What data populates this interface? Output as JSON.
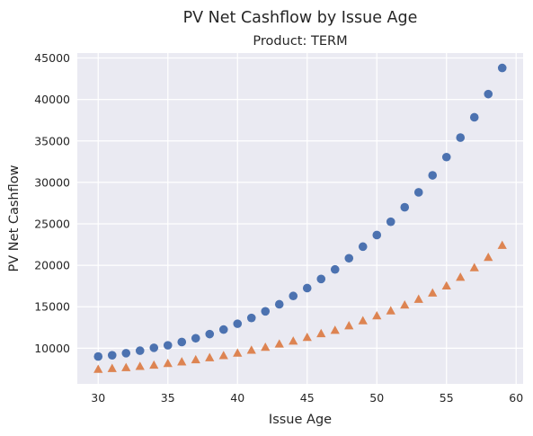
{
  "chart_data": {
    "type": "scatter",
    "title": "PV Net Cashflow by Issue Age",
    "subtitle": "Product: TERM",
    "xlabel": "Issue Age",
    "ylabel": "PV Net Cashflow",
    "xlim": [
      28.5,
      60.5
    ],
    "ylim": [
      5700,
      45600
    ],
    "xticks": [
      30,
      35,
      40,
      45,
      50,
      55,
      60
    ],
    "yticks": [
      10000,
      15000,
      20000,
      25000,
      30000,
      35000,
      40000,
      45000
    ],
    "grid": true,
    "background": "#eaeaf2",
    "series": [
      {
        "marker": "circle",
        "color": "#4c72b0",
        "x": [
          30,
          31,
          32,
          33,
          34,
          35,
          36,
          37,
          38,
          39,
          40,
          41,
          42,
          43,
          44,
          45,
          46,
          47,
          48,
          49,
          50,
          51,
          52,
          53,
          54,
          55,
          56,
          57,
          58,
          59
        ],
        "y": [
          9000,
          9150,
          9400,
          9700,
          10050,
          10350,
          10750,
          11200,
          11700,
          12250,
          12950,
          13650,
          14450,
          15300,
          16300,
          17250,
          18350,
          19500,
          20850,
          22250,
          23650,
          25250,
          27000,
          28800,
          30850,
          33050,
          35400,
          37850,
          40650,
          43800
        ]
      },
      {
        "marker": "triangle",
        "color": "#dd8452",
        "x": [
          30,
          31,
          32,
          33,
          34,
          35,
          36,
          37,
          38,
          39,
          40,
          41,
          42,
          43,
          44,
          45,
          46,
          47,
          48,
          49,
          50,
          51,
          52,
          53,
          54,
          55,
          56,
          57,
          58,
          59
        ],
        "y": [
          7450,
          7550,
          7650,
          7800,
          7950,
          8150,
          8350,
          8600,
          8850,
          9100,
          9400,
          9750,
          10100,
          10500,
          10850,
          11300,
          11750,
          12150,
          12700,
          13300,
          13900,
          14500,
          15200,
          15900,
          16650,
          17500,
          18550,
          19700,
          20950,
          22400
        ]
      }
    ]
  }
}
